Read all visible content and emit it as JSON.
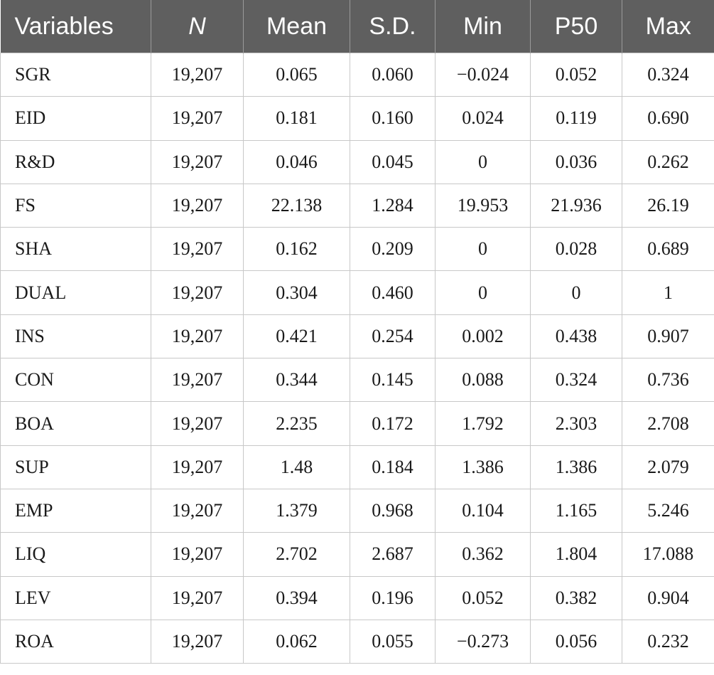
{
  "table": {
    "headers": [
      "Variables",
      "N",
      "Mean",
      "S.D.",
      "Min",
      "P50",
      "Max"
    ],
    "rows": [
      [
        "SGR",
        "19,207",
        "0.065",
        "0.060",
        "−0.024",
        "0.052",
        "0.324"
      ],
      [
        "EID",
        "19,207",
        "0.181",
        "0.160",
        "0.024",
        "0.119",
        "0.690"
      ],
      [
        "R&D",
        "19,207",
        "0.046",
        "0.045",
        "0",
        "0.036",
        "0.262"
      ],
      [
        "FS",
        "19,207",
        "22.138",
        "1.284",
        "19.953",
        "21.936",
        "26.19"
      ],
      [
        "SHA",
        "19,207",
        "0.162",
        "0.209",
        "0",
        "0.028",
        "0.689"
      ],
      [
        "DUAL",
        "19,207",
        "0.304",
        "0.460",
        "0",
        "0",
        "1"
      ],
      [
        "INS",
        "19,207",
        "0.421",
        "0.254",
        "0.002",
        "0.438",
        "0.907"
      ],
      [
        "CON",
        "19,207",
        "0.344",
        "0.145",
        "0.088",
        "0.324",
        "0.736"
      ],
      [
        "BOA",
        "19,207",
        "2.235",
        "0.172",
        "1.792",
        "2.303",
        "2.708"
      ],
      [
        "SUP",
        "19,207",
        "1.48",
        "0.184",
        "1.386",
        "1.386",
        "2.079"
      ],
      [
        "EMP",
        "19,207",
        "1.379",
        "0.968",
        "0.104",
        "1.165",
        "5.246"
      ],
      [
        "LIQ",
        "19,207",
        "2.702",
        "2.687",
        "0.362",
        "1.804",
        "17.088"
      ],
      [
        "LEV",
        "19,207",
        "0.394",
        "0.196",
        "0.052",
        "0.382",
        "0.904"
      ],
      [
        "ROA",
        "19,207",
        "0.062",
        "0.055",
        "−0.273",
        "0.056",
        "0.232"
      ]
    ]
  },
  "colors": {
    "header_background": "#5f5f5f",
    "header_text": "#ffffff",
    "grid_line": "#c8c8c8"
  }
}
